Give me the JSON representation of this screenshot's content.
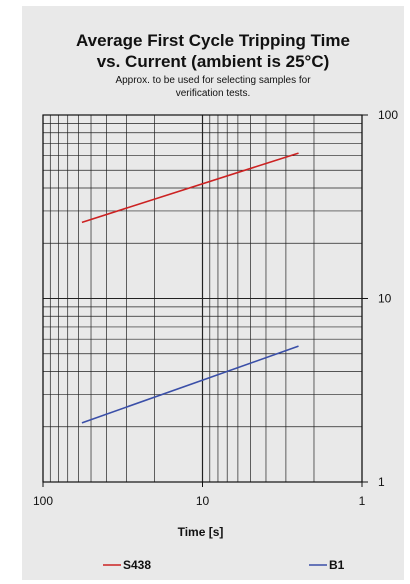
{
  "chart_data": {
    "type": "line",
    "title_lines": [
      "Average First Cycle Tripping Time",
      "vs. Current (ambient is 25°C)"
    ],
    "subtitle_lines": [
      "Approx. to be used for selecting samples for",
      "verification tests."
    ],
    "xlabel": "Time [s]",
    "ylabel": "",
    "x_scale": "log",
    "x_reversed": true,
    "xlim": [
      100,
      1
    ],
    "x_ticks": [
      100,
      10,
      1
    ],
    "x_tick_labels": [
      "100",
      "10",
      "1"
    ],
    "y_scale": "log",
    "ylim": [
      1,
      100
    ],
    "y_ticks": [
      1,
      10,
      100
    ],
    "y_tick_labels": [
      "1",
      "10",
      "100"
    ],
    "y_axis_side": "right",
    "grid": true,
    "legend_position": "bottom",
    "series": [
      {
        "name": "S438",
        "color": "#cc2222",
        "x": [
          57,
          2.5
        ],
        "y": [
          26,
          62
        ]
      },
      {
        "name": "B1",
        "color": "#3a4fa8",
        "x": [
          57,
          2.5
        ],
        "y": [
          2.1,
          5.5
        ]
      }
    ]
  }
}
